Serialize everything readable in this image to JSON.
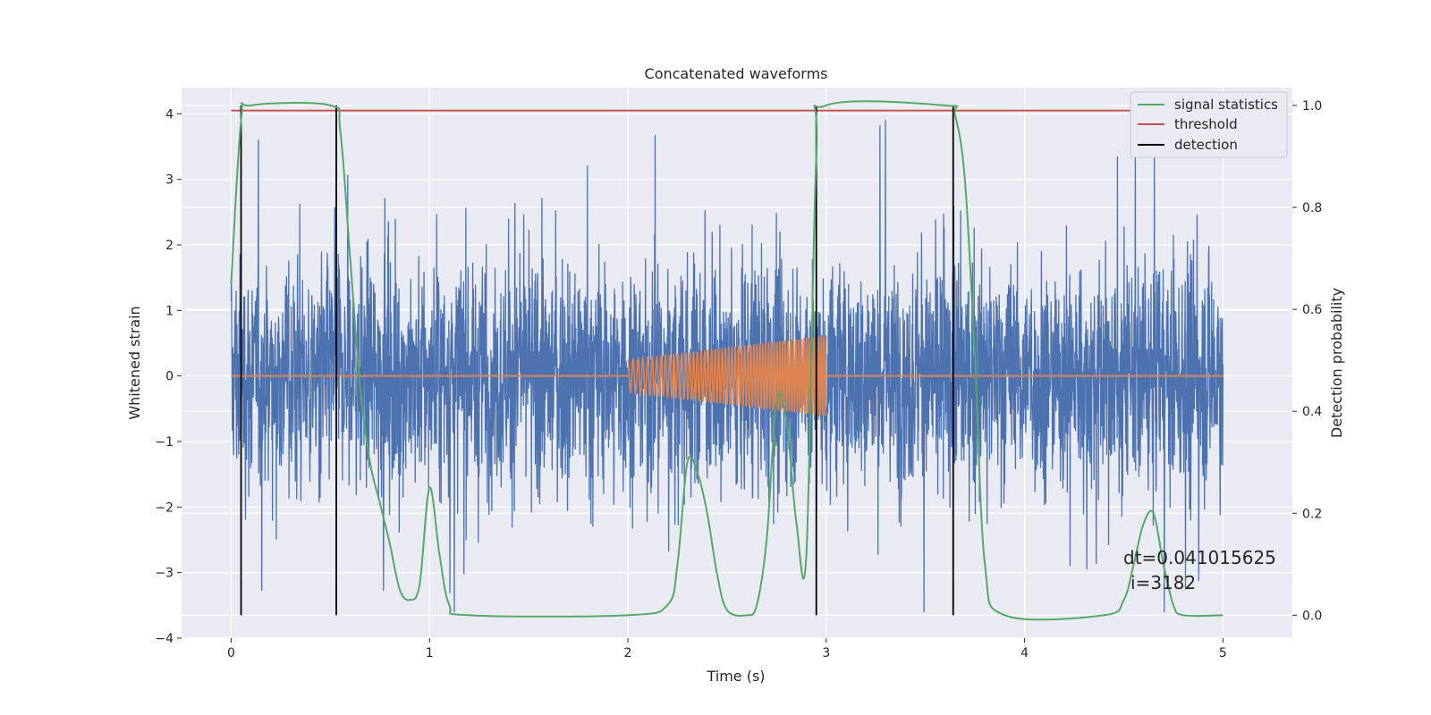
{
  "chart_data": {
    "type": "line",
    "title": "Concatenated waveforms",
    "xlabel": "Time (s)",
    "ylabel_left": "Whitened strain",
    "ylabel_right": "Detection probability",
    "xlim": [
      -0.25,
      5.35
    ],
    "ylim_left": [
      -4,
      4.4
    ],
    "ylim_right": [
      -0.045,
      1.035
    ],
    "x_ticks": [
      "0",
      "1",
      "2",
      "3",
      "4",
      "5"
    ],
    "y_left_ticks": [
      "−4",
      "−3",
      "−2",
      "−1",
      "0",
      "1",
      "2",
      "3",
      "4"
    ],
    "y_right_ticks": [
      "0.0",
      "0.2",
      "0.4",
      "0.6",
      "0.8",
      "1.0"
    ],
    "grid": true,
    "legend_position": "top-right",
    "legend": [
      "signal statistics",
      "threshold",
      "detection"
    ],
    "series": [
      {
        "axis": "left",
        "color": "#4c72b0",
        "description_values": "noise",
        "x_range": [
          0,
          5
        ],
        "amplitude_rms": 0.9
      },
      {
        "axis": "left",
        "color": "#dd8452",
        "x_range": [
          2,
          3
        ],
        "chirp_amplitude_start": 0.25,
        "chirp_amplitude_end": 0.62
      },
      {
        "name": "signal statistics",
        "axis": "right",
        "color": "#55a868",
        "x": [
          0,
          0.05,
          0.1,
          0.5,
          0.55,
          0.6,
          0.65,
          0.7,
          0.75,
          0.8,
          0.85,
          0.9,
          0.95,
          1.0,
          1.05,
          1.1,
          1.2,
          2.0,
          2.2,
          2.25,
          2.3,
          2.35,
          2.4,
          2.45,
          2.5,
          2.6,
          2.65,
          2.7,
          2.75,
          2.8,
          2.85,
          2.9,
          2.95,
          3.0,
          3.6,
          3.65,
          3.7,
          3.75,
          3.8,
          3.9,
          4.4,
          4.5,
          4.55,
          4.6,
          4.65,
          4.7,
          4.75,
          4.8,
          5.0
        ],
        "values": [
          0.65,
          0.97,
          1.0,
          1.0,
          0.95,
          0.7,
          0.45,
          0.3,
          0.22,
          0.14,
          0.05,
          0.03,
          0.06,
          0.25,
          0.12,
          0.02,
          0.0,
          0.0,
          0.02,
          0.1,
          0.3,
          0.28,
          0.2,
          0.08,
          0.01,
          0.0,
          0.02,
          0.15,
          0.42,
          0.38,
          0.18,
          0.12,
          0.9,
          1.0,
          1.0,
          0.98,
          0.85,
          0.5,
          0.1,
          0.0,
          0.0,
          0.03,
          0.1,
          0.18,
          0.2,
          0.1,
          0.02,
          0.0,
          0.0
        ]
      },
      {
        "name": "threshold",
        "axis": "right",
        "color": "#c44e52",
        "x": [
          0,
          5
        ],
        "values": [
          0.99,
          0.99
        ]
      },
      {
        "name": "detection",
        "axis": "right",
        "color": "#000000",
        "x_positions": [
          0.05,
          0.53,
          2.95,
          3.64
        ],
        "y_range": [
          0,
          1.0
        ]
      }
    ],
    "annotation": [
      "dt=0.041015625",
      "i=3182"
    ]
  }
}
